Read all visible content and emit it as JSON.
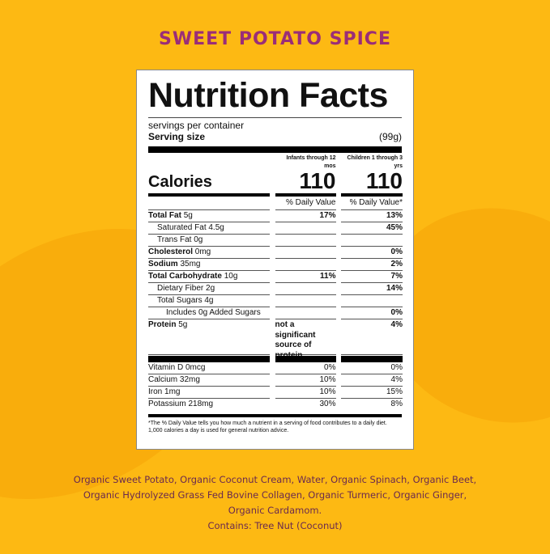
{
  "title": "SWEET POTATO SPICE",
  "label": {
    "heading": "Nutrition Facts",
    "servings": "servings per container",
    "serving_size_label": "Serving size",
    "serving_size_value": "(99g)",
    "col1_header": "Infants through 12 mos",
    "col2_header": "Children 1 through 3 yrs",
    "calories_label": "Calories",
    "calories": [
      "110",
      "110"
    ],
    "dv_headers": [
      "% Daily Value",
      "% Daily Value*"
    ],
    "rows": [
      {
        "bold": "Total Fat",
        "amount": " 5g",
        "indent": 0,
        "c1": "17%",
        "c2": "13%"
      },
      {
        "bold": "",
        "amount": "Saturated Fat 4.5g",
        "indent": 1,
        "c1": "",
        "c2": "45%"
      },
      {
        "bold": "",
        "amount": "Trans Fat 0g",
        "indent": 1,
        "c1": "",
        "c2": ""
      },
      {
        "bold": "Cholesterol",
        "amount": " 0mg",
        "indent": 0,
        "c1": "",
        "c2": "0%"
      },
      {
        "bold": "Sodium",
        "amount": " 35mg",
        "indent": 0,
        "c1": "",
        "c2": "2%"
      },
      {
        "bold": "Total Carbohydrate",
        "amount": " 10g",
        "indent": 0,
        "c1": "11%",
        "c2": "7%"
      },
      {
        "bold": "",
        "amount": "Dietary Fiber 2g",
        "indent": 1,
        "c1": "",
        "c2": "14%"
      },
      {
        "bold": "",
        "amount": "Total Sugars 4g",
        "indent": 1,
        "c1": "",
        "c2": ""
      },
      {
        "bold": "",
        "amount": "Includes 0g Added Sugars",
        "indent": 2,
        "c1": "",
        "c2": "0%"
      }
    ],
    "protein": {
      "bold": "Protein",
      "amount": " 5g",
      "c1": "not a significant source of protein",
      "c2": "4%"
    },
    "minerals": [
      {
        "name": "Vitamin D 0mcg",
        "c1": "0%",
        "c2": "0%"
      },
      {
        "name": "Calcium 32mg",
        "c1": "10%",
        "c2": "4%"
      },
      {
        "name": "Iron 1mg",
        "c1": "10%",
        "c2": "15%"
      },
      {
        "name": "Potassium 218mg",
        "c1": "30%",
        "c2": "8%"
      }
    ],
    "footnote": "*The % Daily Value tells you how much a nutrient in a serving of food contributes to a daily diet. 1,000 calories a day is used for general nutrition advice."
  },
  "ingredients": [
    "Organic Sweet Potato, Organic Coconut Cream, Water, Organic Spinach, Organic Beet,",
    "Organic Hydrolyzed Grass Fed Bovine Collagen, Organic Turmeric, Organic Ginger,",
    "Organic Cardamom.",
    "Contains: Tree Nut (Coconut)"
  ],
  "colors": {
    "background": "#fdb913",
    "title": "#9a2d78",
    "ingredients": "#6a2a4f"
  }
}
